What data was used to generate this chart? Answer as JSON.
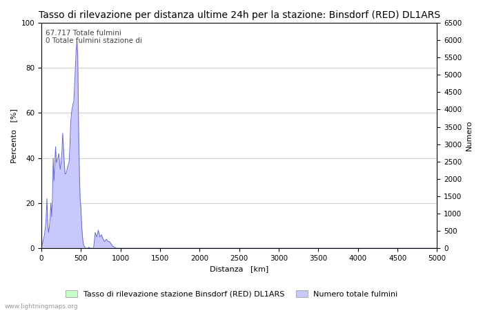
{
  "title": "Tasso di rilevazione per distanza ultime 24h per la stazione: Binsdorf (RED) DL1ARS",
  "xlabel": "Distanza   [km]",
  "ylabel_left": "Percento   [%]",
  "ylabel_right": "Numero",
  "annotation_line1": "67.717 Totale fulmini",
  "annotation_line2": "0 Totale fulmini stazione di",
  "xlim": [
    0,
    5000
  ],
  "ylim_left": [
    0,
    100
  ],
  "ylim_right": [
    0,
    6500
  ],
  "xticks": [
    0,
    500,
    1000,
    1500,
    2000,
    2500,
    3000,
    3500,
    4000,
    4500,
    5000
  ],
  "yticks_left": [
    0,
    20,
    40,
    60,
    80,
    100
  ],
  "yticks_right": [
    0,
    500,
    1000,
    1500,
    2000,
    2500,
    3000,
    3500,
    4000,
    4500,
    5000,
    5500,
    6000,
    6500
  ],
  "legend_label_green": "Tasso di rilevazione stazione Binsdorf (RED) DL1ARS",
  "legend_label_blue": "Numero totale fulmini",
  "watermark": "www.lightningmaps.org",
  "bg_color": "#ffffff",
  "fill_color_blue": "#c8c8ff",
  "fill_color_green": "#c8ffc8",
  "line_color": "#6666cc",
  "grid_color": "#bbbbbb",
  "title_fontsize": 10,
  "axis_fontsize": 8,
  "tick_fontsize": 7.5,
  "annotation_fontsize": 7.5
}
